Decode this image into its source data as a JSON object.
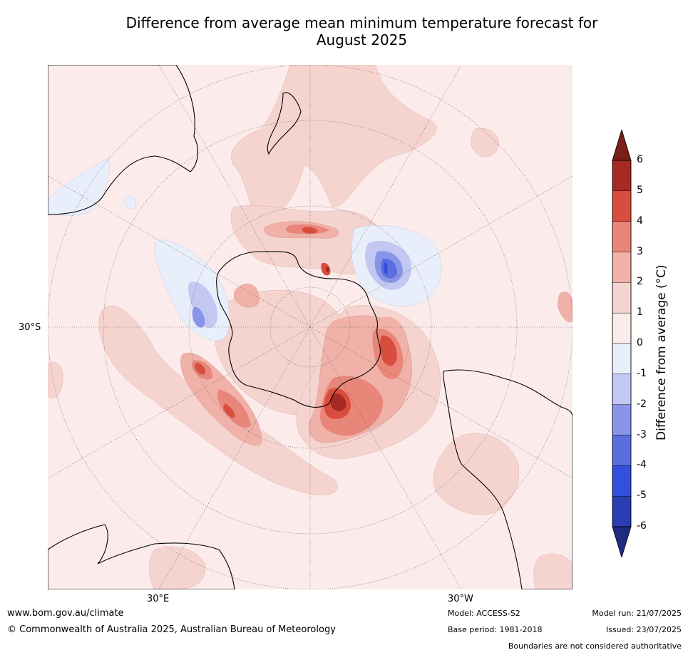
{
  "title_line1": "Difference from average mean minimum temperature forecast for",
  "title_line2": "August 2025",
  "map": {
    "projection": "south-polar-stereographic",
    "lat_label": "30°S",
    "lon_labels": [
      "30°E",
      "30°W"
    ]
  },
  "colorbar": {
    "title": "Difference from average (°C)",
    "ticks": [
      "6",
      "5",
      "4",
      "3",
      "2",
      "1",
      "0",
      "-1",
      "-2",
      "-3",
      "-4",
      "-5",
      "-6"
    ],
    "colors": [
      "#7b1e18",
      "#a72a22",
      "#d94d3e",
      "#e8867a",
      "#f0b1a8",
      "#f5d4d0",
      "#fbeceb",
      "#e9eefb",
      "#c2c8f2",
      "#8895e8",
      "#5a6ee0",
      "#3350dc",
      "#2a3db2",
      "#1f2a80"
    ],
    "extend": "both"
  },
  "footer": {
    "website": "www.bom.gov.au/climate",
    "copyright": "© Commonwealth of Australia 2025, Australian Bureau of Meteorology",
    "model": "Model: ACCESS-S2",
    "base_period": "Base period: 1981-2018",
    "model_run": "Model run: 21/07/2025",
    "issued": "Issued: 23/07/2025",
    "disclaimer": "Boundaries are not considered authoritative"
  }
}
